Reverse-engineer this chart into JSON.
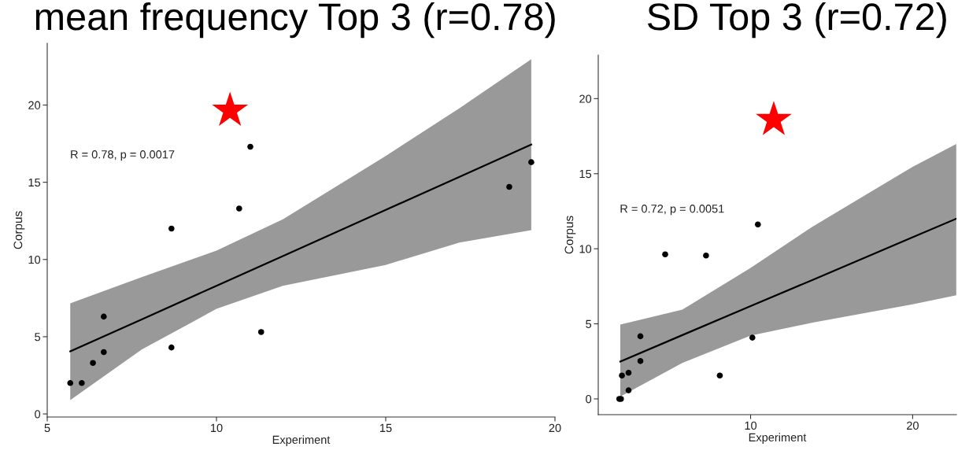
{
  "chart_data": [
    {
      "type": "scatter",
      "title": "mean frequency Top 3 (r=0.78)",
      "xlabel": "Experiment",
      "ylabel": "Corpus",
      "xlim": [
        5,
        20
      ],
      "ylim": [
        -0.2,
        24
      ],
      "xticks": [
        5,
        10,
        15,
        20
      ],
      "yticks": [
        0,
        5,
        10,
        15,
        20
      ],
      "grid": false,
      "annotations": [
        "R = 0.78, p = 0.0017"
      ],
      "series": [
        {
          "marker": "circle",
          "color": "#000000",
          "x": [
            5.68,
            6.02,
            6.35,
            6.67,
            6.67,
            8.67,
            8.67,
            10.67,
            11.0,
            11.32,
            18.65,
            19.3
          ],
          "values": [
            2.0,
            2.0,
            3.3,
            4.0,
            6.3,
            4.3,
            12.0,
            13.3,
            17.3,
            5.3,
            14.7,
            16.3
          ]
        },
        {
          "type": "line",
          "color": "#000000",
          "x": [
            5.68,
            7.79,
            10,
            11.96,
            15,
            17.18,
            19.3
          ],
          "values": [
            4.05,
            6.12,
            8.3,
            10.22,
            13.21,
            15.35,
            17.44
          ],
          "lower": [
            0.9,
            4.17,
            6.8,
            8.3,
            9.65,
            11.1,
            11.9
          ],
          "upper": [
            7.16,
            8.85,
            10.57,
            12.6,
            16.7,
            19.8,
            22.97
          ]
        }
      ]
    },
    {
      "type": "scatter",
      "title": "SD Top 3 (r=0.72)",
      "xlabel": "Experiment",
      "ylabel": "Corpus",
      "xlim": [
        0.6,
        22.7
      ],
      "ylim": [
        -1.05,
        22.9
      ],
      "xticks": [
        10,
        20
      ],
      "yticks": [
        0,
        5,
        10,
        15,
        20
      ],
      "grid": false,
      "annotations": [
        "R = 0.72, p = 0.0051"
      ],
      "series": [
        {
          "marker": "circle",
          "color": "#000000",
          "x": [
            1.9,
            2.0,
            2.06,
            2.47,
            2.47,
            3.2,
            3.2,
            4.73,
            7.25,
            8.1,
            10.11,
            10.45
          ],
          "values": [
            0,
            0,
            1.56,
            1.74,
            0.57,
            4.17,
            2.52,
            9.63,
            9.55,
            1.56,
            4.08,
            11.62
          ]
        },
        {
          "type": "line",
          "color": "#000000",
          "x": [
            1.96,
            5.79,
            10,
            13.83,
            20,
            22.69
          ],
          "values": [
            2.49,
            4.25,
            6.18,
            7.93,
            10.77,
            12.0
          ],
          "lower": [
            0.15,
            2.4,
            4.22,
            5.08,
            6.3,
            6.9
          ],
          "upper": [
            4.95,
            5.95,
            8.72,
            11.48,
            15.46,
            16.98
          ]
        }
      ]
    }
  ]
}
